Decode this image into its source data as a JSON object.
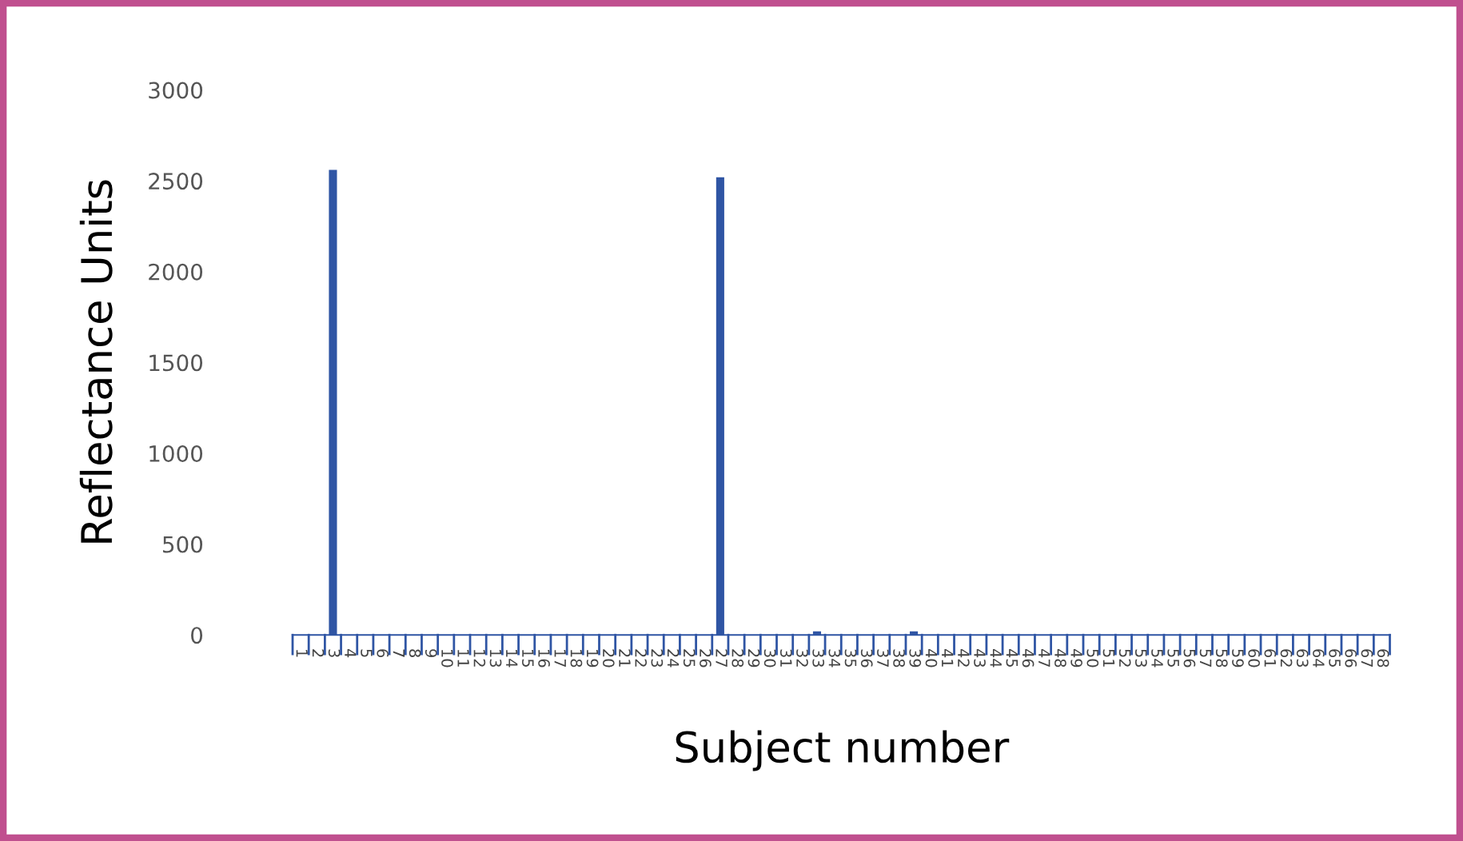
{
  "chart_data": {
    "type": "bar",
    "xlabel": "Subject number",
    "ylabel": "Reflectance Units",
    "categories": [
      "1",
      "2",
      "3",
      "4",
      "5",
      "6",
      "7",
      "8",
      "9",
      "10",
      "11",
      "12",
      "13",
      "14",
      "15",
      "16",
      "17",
      "18",
      "19",
      "20",
      "21",
      "22",
      "23",
      "24",
      "25",
      "26",
      "27",
      "28",
      "29",
      "30",
      "31",
      "32",
      "33",
      "34",
      "35",
      "36",
      "37",
      "38",
      "39",
      "40",
      "41",
      "42",
      "43",
      "44",
      "45",
      "46",
      "47",
      "48",
      "49",
      "50",
      "51",
      "52",
      "53",
      "54",
      "55",
      "56",
      "57",
      "58",
      "59",
      "60",
      "61",
      "62",
      "63",
      "64",
      "65",
      "66",
      "67",
      "68"
    ],
    "values": [
      0,
      0,
      2560,
      0,
      0,
      0,
      0,
      0,
      0,
      0,
      0,
      0,
      0,
      0,
      0,
      0,
      0,
      0,
      0,
      0,
      0,
      0,
      0,
      0,
      0,
      0,
      2520,
      0,
      0,
      0,
      0,
      0,
      20,
      0,
      0,
      0,
      0,
      0,
      20,
      0,
      0,
      0,
      0,
      0,
      0,
      0,
      0,
      0,
      0,
      0,
      0,
      0,
      0,
      0,
      0,
      0,
      0,
      0,
      0,
      0,
      0,
      0,
      0,
      0,
      0,
      0,
      0,
      0
    ],
    "color": "#2f55a4",
    "ylim": [
      0,
      3000
    ],
    "yticks": [
      0,
      500,
      1000,
      1500,
      2000,
      2500,
      3000
    ],
    "grid": false
  }
}
